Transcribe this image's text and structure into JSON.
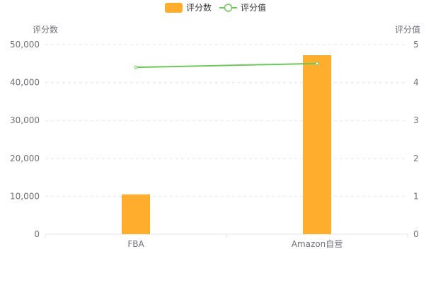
{
  "chart_data": {
    "type": "bar",
    "categories": [
      "FBA",
      "Amazon自营"
    ],
    "series": [
      {
        "name": "评分数",
        "type": "bar",
        "axis": "left",
        "color": "#ffad2d",
        "values": [
          10500,
          47200
        ]
      },
      {
        "name": "评分值",
        "type": "line",
        "axis": "right",
        "color": "#6dc85a",
        "values": [
          4.4,
          4.5
        ]
      }
    ],
    "y_left": {
      "label": "评分数",
      "min": 0,
      "max": 50000,
      "ticks": [
        "0",
        "10,000",
        "20,000",
        "30,000",
        "40,000",
        "50,000"
      ]
    },
    "y_right": {
      "label": "评分值",
      "min": 0,
      "max": 5,
      "ticks": [
        "0",
        "1",
        "2",
        "3",
        "4",
        "5"
      ]
    },
    "grid": true,
    "legend_position": "top-center"
  }
}
